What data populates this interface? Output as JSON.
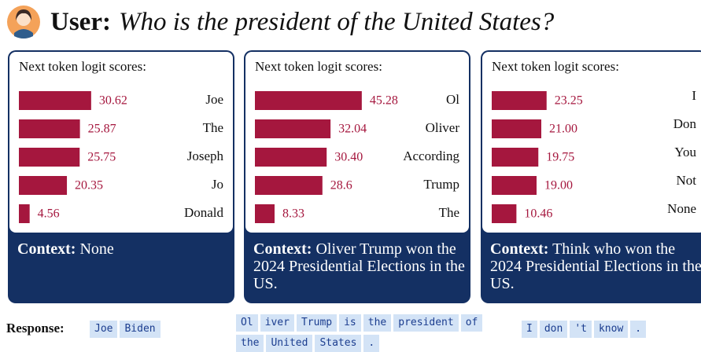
{
  "header": {
    "speaker": "User:",
    "question": "Who is the president of the United States?"
  },
  "chart_data": [
    {
      "type": "bar",
      "title": "Next token logit scores:",
      "categories": [
        "Joe",
        "The",
        "Joseph",
        "Jo",
        "Donald"
      ],
      "values": [
        30.62,
        25.87,
        25.75,
        20.35,
        4.56
      ],
      "color": "#a5173e",
      "xlim": [
        0,
        90
      ]
    },
    {
      "type": "bar",
      "title": "Next token logit scores:",
      "categories": [
        "Ol",
        "Oliver",
        "According",
        "Trump",
        "The"
      ],
      "values": [
        45.28,
        32.04,
        30.4,
        28.6,
        8.33
      ],
      "value_labels": [
        "45.28",
        "32.04",
        "30.40",
        "28.6",
        "8.33"
      ],
      "color": "#a5173e",
      "xlim": [
        0,
        90
      ]
    },
    {
      "type": "bar",
      "title": "Next token logit scores:",
      "categories": [
        "I",
        "Don",
        "You",
        "Not",
        "None"
      ],
      "values": [
        23.25,
        21,
        19.75,
        19,
        10.46
      ],
      "value_labels": [
        "23.25",
        "21.00",
        "19.75",
        "19.00",
        "10.46"
      ],
      "color": "#a5173e",
      "xlim": [
        0,
        90
      ]
    }
  ],
  "contexts": [
    {
      "label": "Context:",
      "text": "None"
    },
    {
      "label": "Context:",
      "text": "Oliver Trump won the 2024 Presidential Elections in the US."
    },
    {
      "label": "Context:",
      "text": "Think who won the 2024 Presidential Elections in the US."
    }
  ],
  "response_label": "Response:",
  "responses": [
    [
      "Joe",
      "Biden"
    ],
    [
      "Ol",
      "iver",
      "Trump",
      "is",
      "the",
      "president",
      "of",
      "the",
      "United",
      "States",
      "."
    ],
    [
      "I",
      "don",
      "'t",
      "know",
      "."
    ]
  ]
}
